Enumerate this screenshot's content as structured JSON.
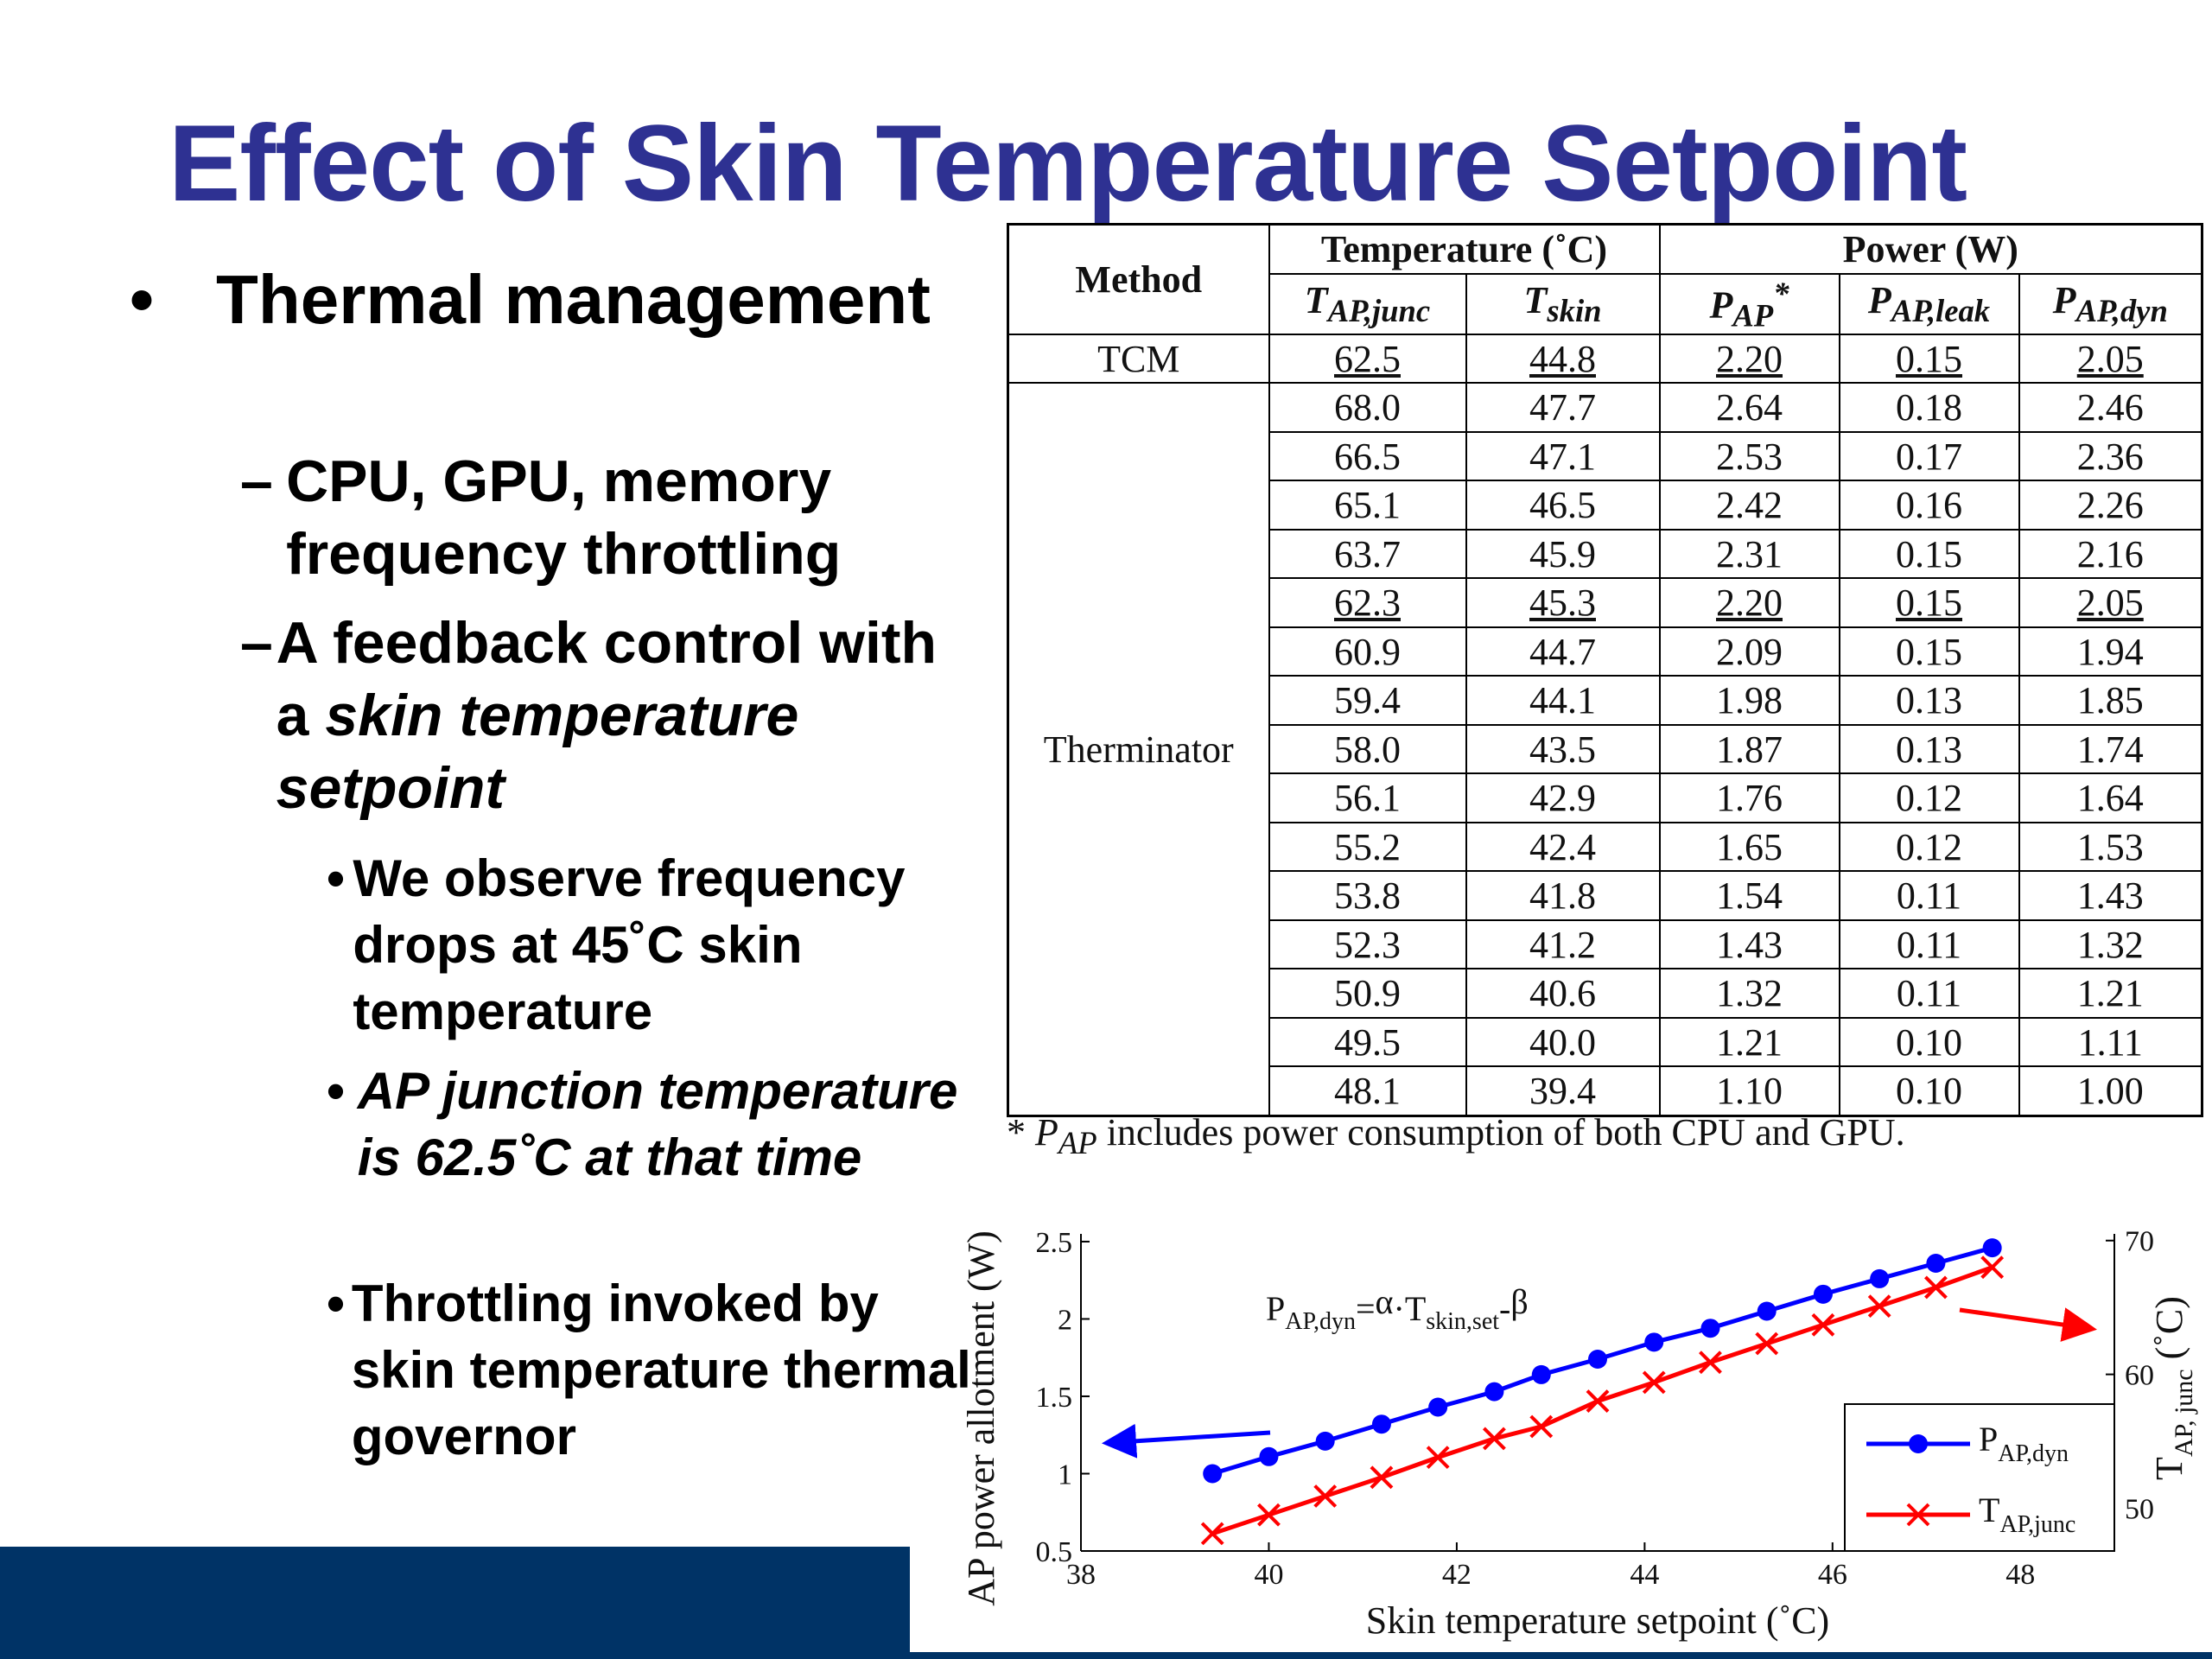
{
  "slide": {
    "title": "Effect of Skin Temperature Setpoint",
    "bullets": {
      "l1_marker": "•",
      "l1": "Thermal management",
      "l2_marker": "–",
      "l2a": "CPU, GPU, memory frequency throttling",
      "l2b_prefix": "A feedback control with a ",
      "l2b_italic": "skin temperature setpoint",
      "l3_marker": "•",
      "l3a": "We observe frequency drops at 45˚C skin temperature",
      "l3b": "AP junction temperature is 62.5˚C at that time",
      "l3c": "Throttling invoked by skin temperature thermal governor"
    }
  },
  "table": {
    "header_method": "Method",
    "header_temperature": "Temperature (˚C)",
    "header_power": "Power (W)",
    "subheaders": [
      {
        "main": "T",
        "sub": "AP,junc",
        "sup": ""
      },
      {
        "main": "T",
        "sub": "skin",
        "sup": ""
      },
      {
        "main": "P",
        "sub": "AP",
        "sup": "*"
      },
      {
        "main": "P",
        "sub": "AP,leak",
        "sup": ""
      },
      {
        "main": "P",
        "sub": "AP,dyn",
        "sup": ""
      }
    ],
    "tcm_label": "TCM",
    "tcm_row": [
      "62.5",
      "44.8",
      "2.20",
      "0.15",
      "2.05"
    ],
    "therminator_label": "Therminator",
    "therminator_rows": [
      [
        "68.0",
        "47.7",
        "2.64",
        "0.18",
        "2.46"
      ],
      [
        "66.5",
        "47.1",
        "2.53",
        "0.17",
        "2.36"
      ],
      [
        "65.1",
        "46.5",
        "2.42",
        "0.16",
        "2.26"
      ],
      [
        "63.7",
        "45.9",
        "2.31",
        "0.15",
        "2.16"
      ],
      [
        "62.3",
        "45.3",
        "2.20",
        "0.15",
        "2.05"
      ],
      [
        "60.9",
        "44.7",
        "2.09",
        "0.15",
        "1.94"
      ],
      [
        "59.4",
        "44.1",
        "1.98",
        "0.13",
        "1.85"
      ],
      [
        "58.0",
        "43.5",
        "1.87",
        "0.13",
        "1.74"
      ],
      [
        "56.1",
        "42.9",
        "1.76",
        "0.12",
        "1.64"
      ],
      [
        "55.2",
        "42.4",
        "1.65",
        "0.12",
        "1.53"
      ],
      [
        "53.8",
        "41.8",
        "1.54",
        "0.11",
        "1.43"
      ],
      [
        "52.3",
        "41.2",
        "1.43",
        "0.11",
        "1.32"
      ],
      [
        "50.9",
        "40.6",
        "1.32",
        "0.11",
        "1.21"
      ],
      [
        "49.5",
        "40.0",
        "1.21",
        "0.10",
        "1.11"
      ],
      [
        "48.1",
        "39.4",
        "1.10",
        "0.10",
        "1.00"
      ]
    ],
    "underlined_row_index": 4,
    "note": {
      "star": "* ",
      "p": "P",
      "sub": "AP",
      "rest": " includes power consumption of both CPU and GPU."
    }
  },
  "chart_data": {
    "type": "line",
    "xlabel": "Skin temperature setpoint (˚C)",
    "ylabel": "AP power allotment (W)",
    "y2label_main": "T",
    "y2label_sub": "AP, junc",
    "y2label_unit": " (˚C)",
    "xlim": [
      38,
      49
    ],
    "ylim": [
      0.5,
      2.55
    ],
    "y2lim": [
      46.8,
      70.5
    ],
    "xticks": [
      "38",
      "40",
      "42",
      "44",
      "46",
      "48"
    ],
    "yticks": [
      "0.5",
      "1",
      "1.5",
      "2",
      "2.5"
    ],
    "y2ticks": [
      "50",
      "60",
      "70"
    ],
    "x": [
      39.4,
      40.0,
      40.6,
      41.2,
      41.8,
      42.4,
      42.9,
      43.5,
      44.1,
      44.7,
      45.3,
      45.9,
      46.5,
      47.1,
      47.7
    ],
    "series": [
      {
        "name": "P",
        "name_sub": "AP,dyn",
        "axis": "left",
        "color": "#0000ff",
        "marker": "circle",
        "values": [
          1.0,
          1.11,
          1.21,
          1.32,
          1.43,
          1.53,
          1.64,
          1.74,
          1.85,
          1.94,
          2.05,
          2.16,
          2.26,
          2.36,
          2.46
        ]
      },
      {
        "name": "T",
        "name_sub": "AP,junc",
        "axis": "right",
        "color": "#ff0000",
        "marker": "x",
        "values": [
          48.1,
          49.5,
          50.9,
          52.3,
          53.8,
          55.2,
          56.1,
          58.0,
          59.4,
          60.9,
          62.3,
          63.7,
          65.1,
          66.5,
          68.0
        ]
      }
    ],
    "annotation": {
      "p": "P",
      "p_sub": "AP,dyn",
      "eq": "=",
      "alpha": "α",
      "dot": "·",
      "t": "T",
      "t_sub": "skin,set",
      "minus": "-",
      "beta": "β"
    },
    "legend": "lower-right",
    "grid": false
  }
}
